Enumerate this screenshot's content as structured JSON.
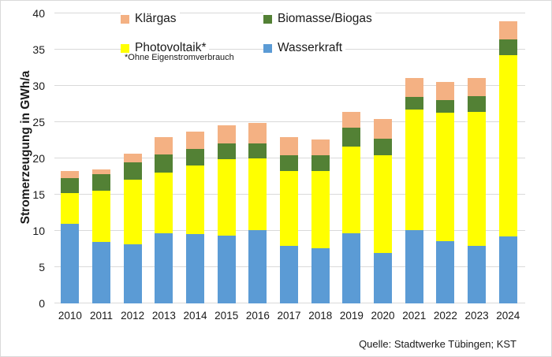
{
  "chart_data": {
    "type": "bar",
    "stacked": true,
    "title": "",
    "ylabel": "Stromerzeugung in GWh/a",
    "xlabel": "",
    "ylim": [
      0,
      40
    ],
    "ytick_step": 5,
    "grid": true,
    "legend_position": "top",
    "categories": [
      "2010",
      "2011",
      "2012",
      "2013",
      "2014",
      "2015",
      "2016",
      "2017",
      "2018",
      "2019",
      "2020",
      "2021",
      "2022",
      "2023",
      "2024"
    ],
    "series": [
      {
        "name": "Wasserkraft",
        "color": "#5B9BD5",
        "values": [
          11.0,
          8.5,
          8.2,
          9.7,
          9.6,
          9.3,
          10.1,
          7.9,
          7.6,
          9.7,
          7.0,
          10.1,
          8.6,
          7.9,
          9.2
        ]
      },
      {
        "name": "Photovoltaik*",
        "color": "#FFFF00",
        "values": [
          4.2,
          7.0,
          8.9,
          8.4,
          9.4,
          10.6,
          9.9,
          10.4,
          10.7,
          11.9,
          13.4,
          16.6,
          17.7,
          18.5,
          25.0
        ]
      },
      {
        "name": "Biomasse/Biogas",
        "color": "#538135",
        "values": [
          2.1,
          2.3,
          2.4,
          2.4,
          2.3,
          2.2,
          2.1,
          2.1,
          2.1,
          2.6,
          2.3,
          1.8,
          1.8,
          2.2,
          2.2
        ]
      },
      {
        "name": "Klärgas",
        "color": "#F4B183",
        "values": [
          1.0,
          0.7,
          1.2,
          2.4,
          2.4,
          2.5,
          2.8,
          2.5,
          2.2,
          2.2,
          2.7,
          2.6,
          2.4,
          2.5,
          2.5
        ]
      }
    ],
    "legend": [
      {
        "label": "Klärgas",
        "color": "#F4B183"
      },
      {
        "label": "Biomasse/Biogas",
        "color": "#538135"
      },
      {
        "label": "Photovoltaik*",
        "color": "#FFFF00"
      },
      {
        "label": "Wasserkraft",
        "color": "#5B9BD5"
      }
    ],
    "footnote": "*Ohne Eigenstromverbrauch",
    "source": "Quelle: Stadtwerke Tübingen; KST"
  },
  "colors": {
    "gridline": "#D9D9D9",
    "text": "#1A1A1A",
    "border": "#D9D9D9",
    "background": "#FFFFFF"
  }
}
